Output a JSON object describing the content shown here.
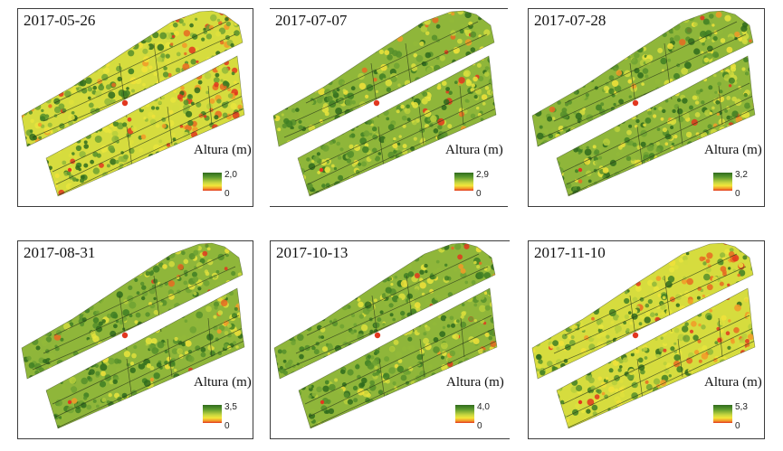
{
  "legend_title": "Altura (m)",
  "colors": {
    "ramp": [
      "#2f6b1d",
      "#5c9a2e",
      "#c6d640",
      "#f3e63a",
      "#f29a28",
      "#e2371f"
    ],
    "hot_spot": "#e2371f"
  },
  "panels": [
    {
      "date": "2017-05-26",
      "max": "2,0",
      "min": "0",
      "greenness": 0.55,
      "red_edge": 0.3
    },
    {
      "date": "2017-07-07",
      "max": "2,9",
      "min": "0",
      "greenness": 0.65,
      "red_edge": 0.08
    },
    {
      "date": "2017-07-28",
      "max": "3,2",
      "min": "0",
      "greenness": 0.7,
      "red_edge": 0.08
    },
    {
      "date": "2017-08-31",
      "max": "3,5",
      "min": "0",
      "greenness": 0.8,
      "red_edge": 0.06
    },
    {
      "date": "2017-10-13",
      "max": "4,0",
      "min": "0",
      "greenness": 0.8,
      "red_edge": 0.08
    },
    {
      "date": "2017-11-10",
      "max": "5,3",
      "min": "0",
      "greenness": 0.45,
      "red_edge": 0.25
    }
  ]
}
